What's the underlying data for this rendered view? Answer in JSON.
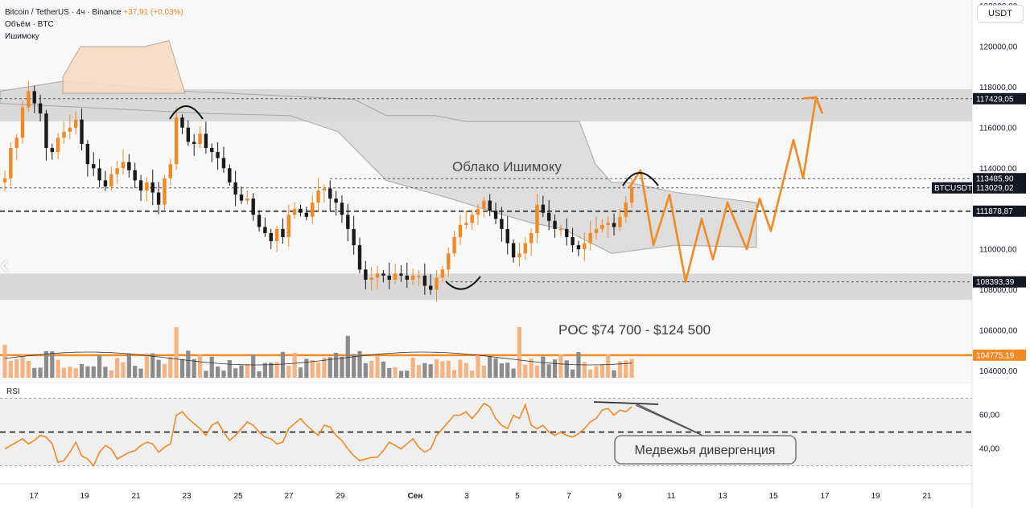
{
  "header": {
    "symbol": "Bitcoin / TetherUS · 4ч · Binance",
    "change": "+37,91 (+0,03%)",
    "volume_label": "Объём · BTC",
    "indicator_label": "Ишимоку"
  },
  "currency_button": "USDT",
  "back_chevron": "‹",
  "rsi_label": "RSI",
  "annotations": {
    "ichimoku_cloud": "Облако Ишимоку",
    "poc": "POC $74 700 - $124 500",
    "bearish_divergence": "Медвежья дивергенция"
  },
  "colors": {
    "bull": "#f08a24",
    "bear": "#1a1a1a",
    "vol_bull": "#f4b383",
    "vol_bear": "#8c8c8c",
    "poc_line": "#f08a24",
    "projection": "#f08a24",
    "zone": "#cfcfcf",
    "cloud_gray": "#d9d9d9",
    "cloud_orange": "#f7dcc3",
    "rsi_line": "#f08a24"
  },
  "chart_data": {
    "type": "candlestick",
    "symbol": "BTCUSDT",
    "timeframe": "4h",
    "y_axis": {
      "min": 103500,
      "max": 122300,
      "ticks": [
        "122000,00",
        "120000,00",
        "118000,00",
        "116000,00",
        "114000,00",
        "110000,00",
        "108000,00",
        "106000,00",
        "104000,00"
      ]
    },
    "x_axis": {
      "tick_labels": [
        "17",
        "19",
        "21",
        "23",
        "25",
        "27",
        "29",
        "Сен",
        "3",
        "5",
        "7",
        "9",
        "11",
        "13",
        "15",
        "17",
        "19",
        "21"
      ]
    },
    "price_tags": [
      {
        "label": "117429,05",
        "value": 117429.05,
        "style": "dark"
      },
      {
        "label": "113485,90",
        "value": 113485.9,
        "style": "dark"
      },
      {
        "label": "113029,02",
        "value": 113029.02,
        "style": "dark",
        "prefix": "BTCUSDT"
      },
      {
        "label": "111878,87",
        "value": 111878.87,
        "style": "dark"
      },
      {
        "label": "108393,39",
        "value": 108393.39,
        "style": "dark"
      },
      {
        "label": "104775,19",
        "value": 104775.19,
        "style": "orange"
      }
    ],
    "horizontal_zones": [
      {
        "from": 116300,
        "to": 117900
      },
      {
        "from": 107500,
        "to": 108800
      }
    ],
    "close_series": [
      113500,
      115000,
      115500,
      117000,
      117800,
      117200,
      116700,
      115000,
      114800,
      115500,
      115800,
      116000,
      116400,
      115200,
      114200,
      114000,
      113400,
      113100,
      113700,
      114000,
      114300,
      113900,
      113400,
      112900,
      113300,
      112800,
      112200,
      113500,
      114200,
      116500,
      116000,
      115300,
      115200,
      115700,
      115000,
      114800,
      114500,
      114000,
      113300,
      112700,
      112400,
      112500,
      111700,
      111100,
      110800,
      110400,
      111000,
      110600,
      111700,
      112000,
      111800,
      111600,
      112300,
      112900,
      113000,
      112500,
      112300,
      111700,
      111000,
      110200,
      109000,
      108500,
      108600,
      108800,
      108700,
      108500,
      108800,
      108700,
      108500,
      108700,
      108700,
      108200,
      108000,
      108600,
      109000,
      109800,
      110600,
      111200,
      111300,
      111700,
      112000,
      112400,
      111900,
      111500,
      111000,
      110300,
      109600,
      109800,
      110300,
      110800,
      112200,
      111800,
      111400,
      111000,
      111000,
      110600,
      110200,
      110000,
      110300,
      110800,
      111000,
      111200,
      111300,
      111100,
      111600,
      112300,
      113029
    ],
    "rsi": {
      "levels": [
        70,
        50,
        30
      ],
      "tick_labels": [
        "60,00",
        "40,00"
      ],
      "values": [
        40,
        42,
        44,
        46,
        43,
        45,
        48,
        47,
        43,
        32,
        33,
        38,
        44,
        36,
        34,
        30,
        38,
        42,
        40,
        34,
        36,
        38,
        39,
        42,
        44,
        43,
        38,
        41,
        43,
        60,
        62,
        58,
        55,
        52,
        48,
        54,
        56,
        50,
        45,
        48,
        52,
        56,
        54,
        50,
        47,
        46,
        43,
        44,
        52,
        55,
        58,
        54,
        51,
        48,
        54,
        53,
        48,
        45,
        40,
        36,
        33,
        34,
        35,
        35,
        39,
        44,
        42,
        40,
        43,
        46,
        41,
        38,
        40,
        48,
        52,
        56,
        60,
        60,
        62,
        58,
        62,
        67,
        65,
        58,
        54,
        52,
        60,
        58,
        66,
        54,
        52,
        54,
        50,
        48,
        50,
        48,
        47,
        49,
        52,
        56,
        58,
        63,
        64,
        60,
        63,
        62,
        65
      ],
      "range": [
        25,
        75
      ]
    },
    "projection_path": [
      113029,
      113900,
      110200,
      112700,
      108400,
      111500,
      109500,
      112300,
      110000,
      112500,
      110900,
      115400,
      113500,
      117500,
      116700
    ]
  }
}
